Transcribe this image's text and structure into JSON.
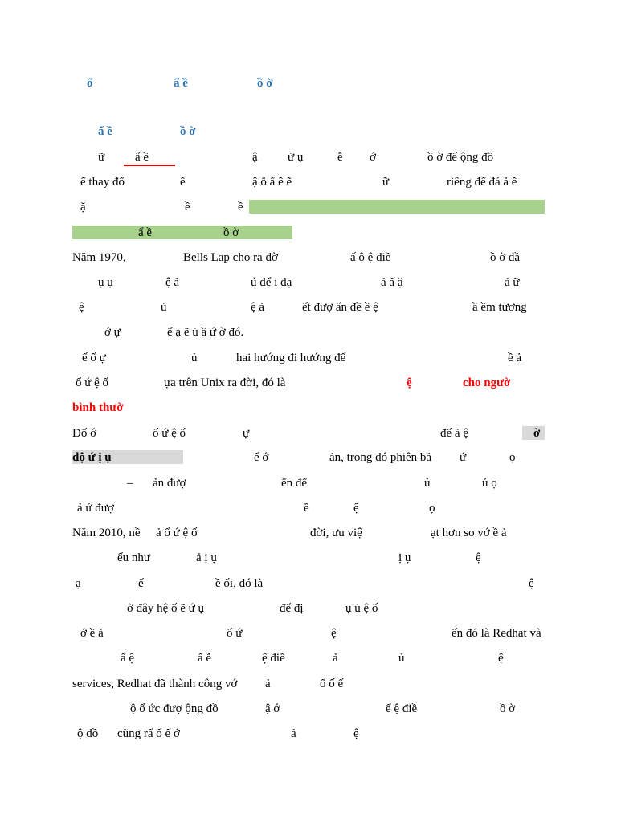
{
  "heading1": [
    "ổ",
    "ẩ ề",
    "ồ ờ"
  ],
  "heading2": [
    "ẩ ề",
    "ồ ờ"
  ],
  "lines": [
    [
      "ữ",
      "ẩ ề",
      "ậ",
      "ử ụ",
      "ễ",
      "ớ",
      "ồ ờ để ộng đồ"
    ],
    [
      "ể thay đổ",
      "ề",
      "ậ ỗ ẩ ề ẽ",
      "ữ",
      "riêng để đá ả ề"
    ],
    [
      "ặ",
      "ề",
      "ề"
    ],
    [
      "ẩ ề",
      "ồ ờ"
    ],
    [
      "Năm 1970,",
      "Bells Lap cho ra đờ",
      "ấ ộ ệ điề",
      "ồ ờ đầ"
    ],
    [
      "ụ ụ",
      "ệ ả",
      "ú để i đạ",
      "ả ấ ặ",
      "ả ữ"
    ],
    [
      "ệ",
      "ủ",
      "ệ ả",
      "ết đượ ấn đề ề ệ",
      "ầ ềm tương"
    ],
    [
      "ớ ự",
      "ể ạ ẽ ủ ầ ứ ờ đó."
    ],
    [
      "ế ố ự",
      "ủ",
      "hai hướng đi hướng để",
      "ề ả"
    ],
    [
      "ổ ứ ệ ố",
      "ựa trên Unix ra đời, đó là",
      "ệ",
      "cho ngườ"
    ],
    [
      "bình thườ"
    ],
    [
      "Đố ớ",
      "ố ứ ệ ố",
      "ự",
      "để ả ệ",
      "ờ"
    ],
    [
      "độ ứ ị ụ",
      "ể ớ",
      "ản, trong đó phiên bả",
      "ứ",
      "ọ"
    ],
    [
      "–",
      "ản đượ",
      "ển để",
      "ủ",
      "ủ ọ"
    ],
    [
      "ả ứ đượ",
      "ề",
      "ệ",
      "ọ"
    ],
    [
      "Năm 2010, nề",
      "ả ổ ứ ệ ố",
      "đời, ưu việ",
      "ạt hơn so vớ ề ả"
    ],
    [
      "ếu như",
      "ả ị ụ",
      "ị ụ",
      "ệ"
    ],
    [
      "ạ",
      "ế",
      "ề ối, đó là",
      "ệ"
    ],
    [
      "ờ đây hệ ố ẽ ứ ụ",
      "để đị",
      "ụ ủ ệ ố"
    ],
    [
      "ớ ề ả",
      "ổ ứ",
      "ệ",
      "ến đó là Redhat và"
    ],
    [
      "ẩ ệ",
      "ấ ễ",
      "ệ điề",
      "ả",
      "ủ",
      "ệ"
    ],
    [
      "services, Redhat đã thành công vớ",
      "ả",
      "ố ố ế"
    ],
    [
      "ộ ổ ức đượ ộng đồ",
      "ậ ớ",
      "ể ệ điề",
      "ồ ờ"
    ],
    [
      "ộ đồ",
      "cũng rấ ổ ế ớ",
      "ả",
      "ệ"
    ]
  ]
}
